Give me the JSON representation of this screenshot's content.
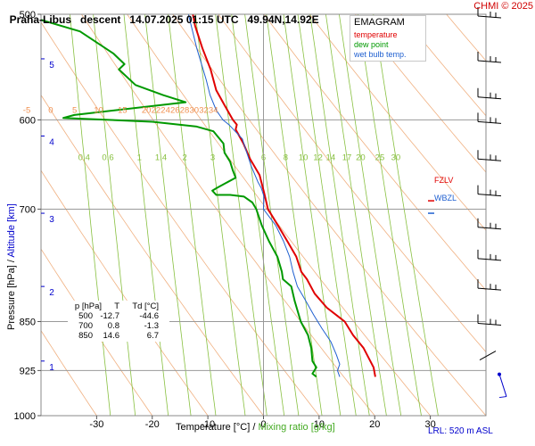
{
  "header": {
    "station": "Praha-Libus",
    "mode": "descent",
    "datetime": "14.07.2025 01:15 UTC",
    "coords": "49.94N,14.92E",
    "credit": "CHMI © 2025"
  },
  "legend": {
    "title": "EMAGRAM",
    "items": [
      {
        "label": "temperature",
        "color": "#e00000"
      },
      {
        "label": "dew point",
        "color": "#009900"
      },
      {
        "label": "wet bulb temp.",
        "color": "#2060d0"
      }
    ]
  },
  "axes": {
    "xlabel_a": "Temperature [°C]",
    "xlabel_sep": " / ",
    "xlabel_b": "Mixing ratio [g/kg]",
    "ylabel_a": "Pressure [hPa]",
    "ylabel_sep": " / ",
    "ylabel_b": "Altitude [km]"
  },
  "table": {
    "headers": [
      "p [hPa]",
      "T",
      "Td [°C]"
    ],
    "rows": [
      [
        "500",
        "-12.7",
        "-44.6"
      ],
      [
        "700",
        "0.8",
        "-1.3"
      ],
      [
        "850",
        "14.6",
        "6.7"
      ]
    ]
  },
  "levels": {
    "fzlv": "FZLV",
    "wbzl": "WBZL"
  },
  "footer": {
    "lrl": "LRL: 520 m ASL"
  },
  "colors": {
    "temperature": "#e00000",
    "dewpoint": "#009900",
    "wetbulb": "#2060d0",
    "mixing_ratio": "#88c040",
    "dry_adiabat": "#f0b080",
    "frame": "#888888",
    "wind": "#0000cc"
  },
  "chart_data": {
    "type": "line",
    "title": "EMAGRAM",
    "xlabel": "Temperature [°C]",
    "ylabel": "Pressure [hPa]",
    "xlim": [
      -40,
      40
    ],
    "ylim": [
      1000,
      500
    ],
    "y_scale": "log",
    "x_ticks": [
      -30,
      -20,
      -10,
      0,
      10,
      20,
      30
    ],
    "y_ticks": [
      500,
      600,
      700,
      850,
      925,
      1000
    ],
    "altitude_ticks_km": [
      5,
      4,
      3,
      2,
      1
    ],
    "altitude_tick_pressure": [
      540,
      617,
      705,
      800,
      910
    ],
    "mixing_ratio_labels": [
      "0.4",
      "0.6",
      "1",
      "1.4",
      "2",
      "3",
      "6",
      "8",
      "10",
      "12",
      "14",
      "17",
      "20",
      "25",
      "30"
    ],
    "mixing_ratio_values": [
      0.4,
      0.6,
      1,
      1.4,
      2,
      3,
      6,
      8,
      10,
      12,
      14,
      17,
      20,
      25,
      30
    ],
    "dry_adiabat_labels": [
      "-5",
      "0",
      "5",
      "10",
      "15",
      "20",
      "22",
      "24",
      "26",
      "28",
      "30",
      "32",
      "34"
    ],
    "dry_adiabat_values": [
      -5,
      0,
      5,
      10,
      15,
      20,
      22,
      24,
      26,
      28,
      30,
      32,
      34
    ],
    "series": [
      {
        "name": "temperature",
        "points": [
          [
            -12.7,
            500
          ],
          [
            -12.3,
            510
          ],
          [
            -11.0,
            530
          ],
          [
            -9.5,
            550
          ],
          [
            -8.5,
            570
          ],
          [
            -7.0,
            585
          ],
          [
            -5.5,
            600
          ],
          [
            -4.8,
            605
          ],
          [
            -5.0,
            610
          ],
          [
            -3.6,
            625
          ],
          [
            -2.4,
            642
          ],
          [
            -0.7,
            660
          ],
          [
            0.1,
            680
          ],
          [
            0.8,
            700
          ],
          [
            2.6,
            720
          ],
          [
            4.3,
            740
          ],
          [
            5.9,
            760
          ],
          [
            6.8,
            780
          ],
          [
            7.8,
            790
          ],
          [
            9.2,
            810
          ],
          [
            11.4,
            830
          ],
          [
            14.6,
            850
          ],
          [
            16.1,
            870
          ],
          [
            18.0,
            890
          ],
          [
            19.2,
            910
          ],
          [
            19.8,
            920
          ],
          [
            20.1,
            935
          ]
        ]
      },
      {
        "name": "dew point",
        "points": [
          [
            -44.6,
            500
          ],
          [
            -42.0,
            502
          ],
          [
            -33.0,
            515
          ],
          [
            -27.0,
            535
          ],
          [
            -25.0,
            545
          ],
          [
            -26.0,
            550
          ],
          [
            -23.0,
            565
          ],
          [
            -18.0,
            575
          ],
          [
            -14.0,
            582
          ],
          [
            -34.0,
            595
          ],
          [
            -36.0,
            598
          ],
          [
            -20.0,
            602
          ],
          [
            -12.0,
            607
          ],
          [
            -9.0,
            612
          ],
          [
            -7.2,
            625
          ],
          [
            -7.0,
            635
          ],
          [
            -6.0,
            645
          ],
          [
            -5.5,
            655
          ],
          [
            -5.0,
            663
          ],
          [
            -7.0,
            670
          ],
          [
            -8.4,
            675
          ],
          [
            -9.2,
            678
          ],
          [
            -8.5,
            683
          ],
          [
            -6.0,
            683
          ],
          [
            -3.5,
            685
          ],
          [
            -2.0,
            692
          ],
          [
            -1.3,
            700
          ],
          [
            -0.3,
            720
          ],
          [
            1.0,
            740
          ],
          [
            2.5,
            760
          ],
          [
            3.3,
            780
          ],
          [
            3.5,
            790
          ],
          [
            5.0,
            800
          ],
          [
            5.6,
            820
          ],
          [
            6.7,
            850
          ],
          [
            8.0,
            870
          ],
          [
            8.6,
            890
          ],
          [
            8.8,
            910
          ],
          [
            9.5,
            920
          ],
          [
            8.8,
            930
          ],
          [
            9.5,
            935
          ]
        ]
      },
      {
        "name": "wet bulb temp.",
        "points": [
          [
            -13.5,
            500
          ],
          [
            -12.0,
            530
          ],
          [
            -10.3,
            560
          ],
          [
            -9.6,
            575
          ],
          [
            -8.5,
            590
          ],
          [
            -7.3,
            600
          ],
          [
            -6.2,
            605
          ],
          [
            -3.8,
            620
          ],
          [
            -3.0,
            635
          ],
          [
            -2.2,
            650
          ],
          [
            -1.0,
            668
          ],
          [
            -0.4,
            675
          ],
          [
            0.1,
            685
          ],
          [
            0.0,
            700
          ],
          [
            2.2,
            720
          ],
          [
            3.6,
            740
          ],
          [
            4.7,
            760
          ],
          [
            5.3,
            780
          ],
          [
            6.1,
            800
          ],
          [
            7.6,
            820
          ],
          [
            9.0,
            840
          ],
          [
            10.5,
            860
          ],
          [
            12.1,
            880
          ],
          [
            13.1,
            900
          ],
          [
            13.7,
            915
          ],
          [
            13.3,
            925
          ],
          [
            13.7,
            935
          ]
        ]
      }
    ],
    "wind_barbs_pressure": [
      500,
      540,
      575,
      600,
      640,
      680,
      720,
      760,
      800,
      850,
      900,
      975
    ],
    "freezing_level_hpa": 690,
    "wet_bulb_zero_hpa": 705
  }
}
